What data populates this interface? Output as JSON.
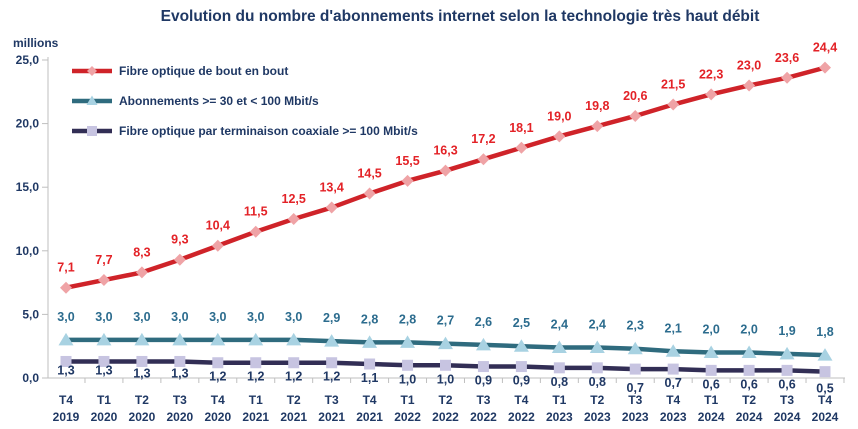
{
  "title": "Evolution du nombre d'abonnements internet selon la technologie très haut débit",
  "chart_data": {
    "type": "line",
    "y_axis": {
      "unit": "millions",
      "min": 0,
      "max": 25,
      "tick_step": 5,
      "tick_labels": [
        "0,0",
        "5,0",
        "10,0",
        "15,0",
        "20,0",
        "25,0"
      ]
    },
    "categories": [
      {
        "quarter": "T4",
        "year": "2019"
      },
      {
        "quarter": "T1",
        "year": "2020"
      },
      {
        "quarter": "T2",
        "year": "2020"
      },
      {
        "quarter": "T3",
        "year": "2020"
      },
      {
        "quarter": "T4",
        "year": "2020"
      },
      {
        "quarter": "T1",
        "year": "2021"
      },
      {
        "quarter": "T2",
        "year": "2021"
      },
      {
        "quarter": "T3",
        "year": "2021"
      },
      {
        "quarter": "T4",
        "year": "2021"
      },
      {
        "quarter": "T1",
        "year": "2022"
      },
      {
        "quarter": "T2",
        "year": "2022"
      },
      {
        "quarter": "T3",
        "year": "2022"
      },
      {
        "quarter": "T4",
        "year": "2022"
      },
      {
        "quarter": "T1",
        "year": "2023"
      },
      {
        "quarter": "T2",
        "year": "2023"
      },
      {
        "quarter": "T3",
        "year": "2023"
      },
      {
        "quarter": "T4",
        "year": "2023"
      },
      {
        "quarter": "T1",
        "year": "2024"
      },
      {
        "quarter": "T2",
        "year": "2024"
      },
      {
        "quarter": "T3",
        "year": "2024"
      },
      {
        "quarter": "T4",
        "year": "2024"
      }
    ],
    "series": [
      {
        "name": "Fibre optique de bout en bout",
        "color": "#CF2329",
        "marker": "diamond",
        "marker_color": "#EFA3A6",
        "label_color": "#E32227",
        "label_position": "above",
        "values": [
          7.1,
          7.7,
          8.3,
          9.3,
          10.4,
          11.5,
          12.5,
          13.4,
          14.5,
          15.5,
          16.3,
          17.2,
          18.1,
          19.0,
          19.8,
          20.6,
          21.5,
          22.3,
          23.0,
          23.6,
          24.4
        ]
      },
      {
        "name": "Abonnements >= 30 et < 100 Mbit/s",
        "color": "#2F6B7E",
        "marker": "triangle",
        "marker_color": "#A8D2E2",
        "label_color": "#2C6C8E",
        "label_position": "above",
        "values": [
          3.0,
          3.0,
          3.0,
          3.0,
          3.0,
          3.0,
          3.0,
          2.9,
          2.8,
          2.8,
          2.7,
          2.6,
          2.5,
          2.4,
          2.4,
          2.3,
          2.1,
          2.0,
          2.0,
          1.9,
          1.8
        ]
      },
      {
        "name": "Fibre optique par terminaison coaxiale >= 100 Mbit/s",
        "color": "#322E55",
        "marker": "square",
        "marker_color": "#C7C4E1",
        "label_color": "#203864",
        "label_position": "below",
        "values": [
          1.3,
          1.3,
          1.3,
          1.3,
          1.2,
          1.2,
          1.2,
          1.2,
          1.1,
          1.0,
          1.0,
          0.9,
          0.9,
          0.8,
          0.8,
          0.7,
          0.7,
          0.6,
          0.6,
          0.6,
          0.5
        ]
      }
    ],
    "legend_position": "top-left-inside",
    "grid": false,
    "axis_color": "#BFBFBF",
    "text_color": "#1F3864",
    "decimal_separator": ","
  }
}
